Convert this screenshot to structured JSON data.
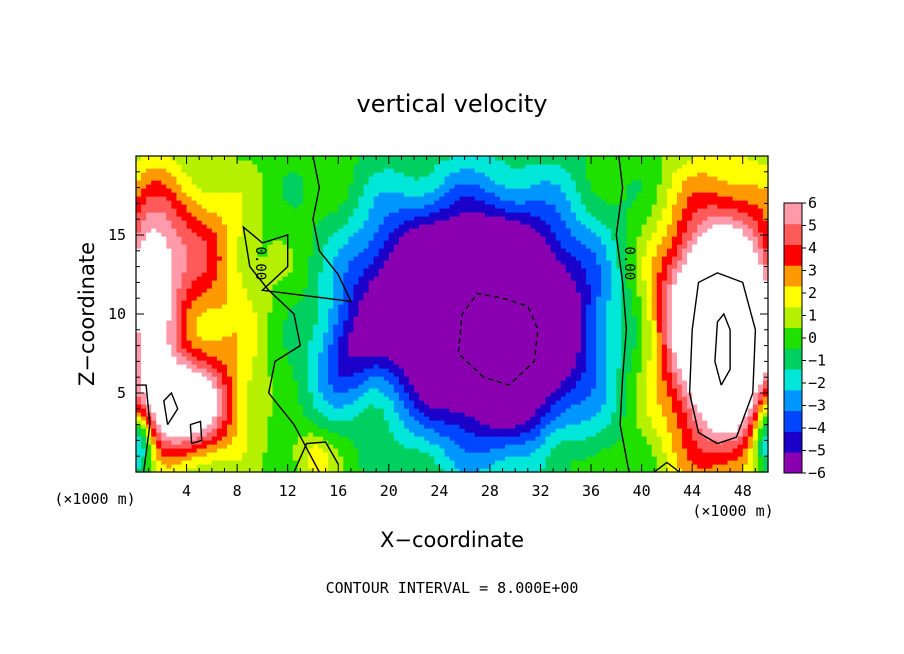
{
  "chart_data": {
    "type": "heatmap",
    "title": "vertical velocity",
    "xlabel": "X−coordinate",
    "ylabel": "Z−coordinate",
    "x_unit_label": "(×1000 m)",
    "y_unit_label": "(×1000 m)",
    "xlim": [
      0,
      50
    ],
    "ylim": [
      0,
      20
    ],
    "x_ticks": [
      4,
      8,
      12,
      16,
      20,
      24,
      28,
      32,
      36,
      40,
      44,
      48
    ],
    "y_ticks": [
      5,
      10,
      15
    ],
    "colorbar": {
      "range": [
        -6,
        6
      ],
      "ticks": [
        "6",
        "5",
        "4",
        "3",
        "2",
        "1",
        "0",
        "−1",
        "−2",
        "−3",
        "−4",
        "−5",
        "−6"
      ],
      "colors": [
        "#8a00b0",
        "#1a00c8",
        "#0046ff",
        "#0096ff",
        "#00e6d8",
        "#00d060",
        "#20e000",
        "#b4f000",
        "#ffff00",
        "#ff9900",
        "#ff0000",
        "#ff5a5a",
        "#ff9aaa"
      ]
    },
    "contour_labels": [
      "0.00",
      "0.00"
    ],
    "footer": "CONTOUR INTERVAL = 8.000E+00",
    "features": [
      {
        "x": 28.5,
        "z": 9.5,
        "sx": 5.2,
        "sz": 5.0,
        "amp": -12
      },
      {
        "x": 21.5,
        "z": 12.0,
        "sx": 3.5,
        "sz": 4.0,
        "amp": -3
      },
      {
        "x": 16.5,
        "z": 7.5,
        "sx": 1.5,
        "sz": 2.0,
        "amp": -3
      },
      {
        "x": 18.5,
        "z": 11.0,
        "sx": 2.5,
        "sz": 3.0,
        "amp": -1.5
      },
      {
        "x": 46.5,
        "z": 9.0,
        "sx": 3.2,
        "sz": 5.5,
        "amp": 12
      },
      {
        "x": 44.5,
        "z": 11.0,
        "sx": 2.5,
        "sz": 2.5,
        "amp": 2
      },
      {
        "x": 3.5,
        "z": 4.2,
        "sx": 2.8,
        "sz": 2.2,
        "amp": 8
      },
      {
        "x": 1.0,
        "z": 11.5,
        "sx": 1.8,
        "sz": 4.5,
        "amp": 7
      },
      {
        "x": 4.5,
        "z": 14.5,
        "sx": 2.5,
        "sz": 3.0,
        "amp": 3
      },
      {
        "x": 7.0,
        "z": 9.0,
        "sx": 2.5,
        "sz": 5.0,
        "amp": 1.5
      },
      {
        "x": 14.0,
        "z": 1.0,
        "sx": 1.2,
        "sz": 1.2,
        "amp": 2
      },
      {
        "x": 33.5,
        "z": 1.0,
        "sx": 1.2,
        "sz": 1.2,
        "amp": 1.5
      },
      {
        "x": 0.3,
        "z": 2.0,
        "sx": 0.8,
        "sz": 1.5,
        "amp": -5
      },
      {
        "x": 50.0,
        "z": 2.0,
        "sx": 0.9,
        "sz": 1.8,
        "amp": -5
      },
      {
        "x": 14.0,
        "z": 5.0,
        "sx": 2.0,
        "sz": 2.0,
        "amp": -1
      }
    ]
  }
}
